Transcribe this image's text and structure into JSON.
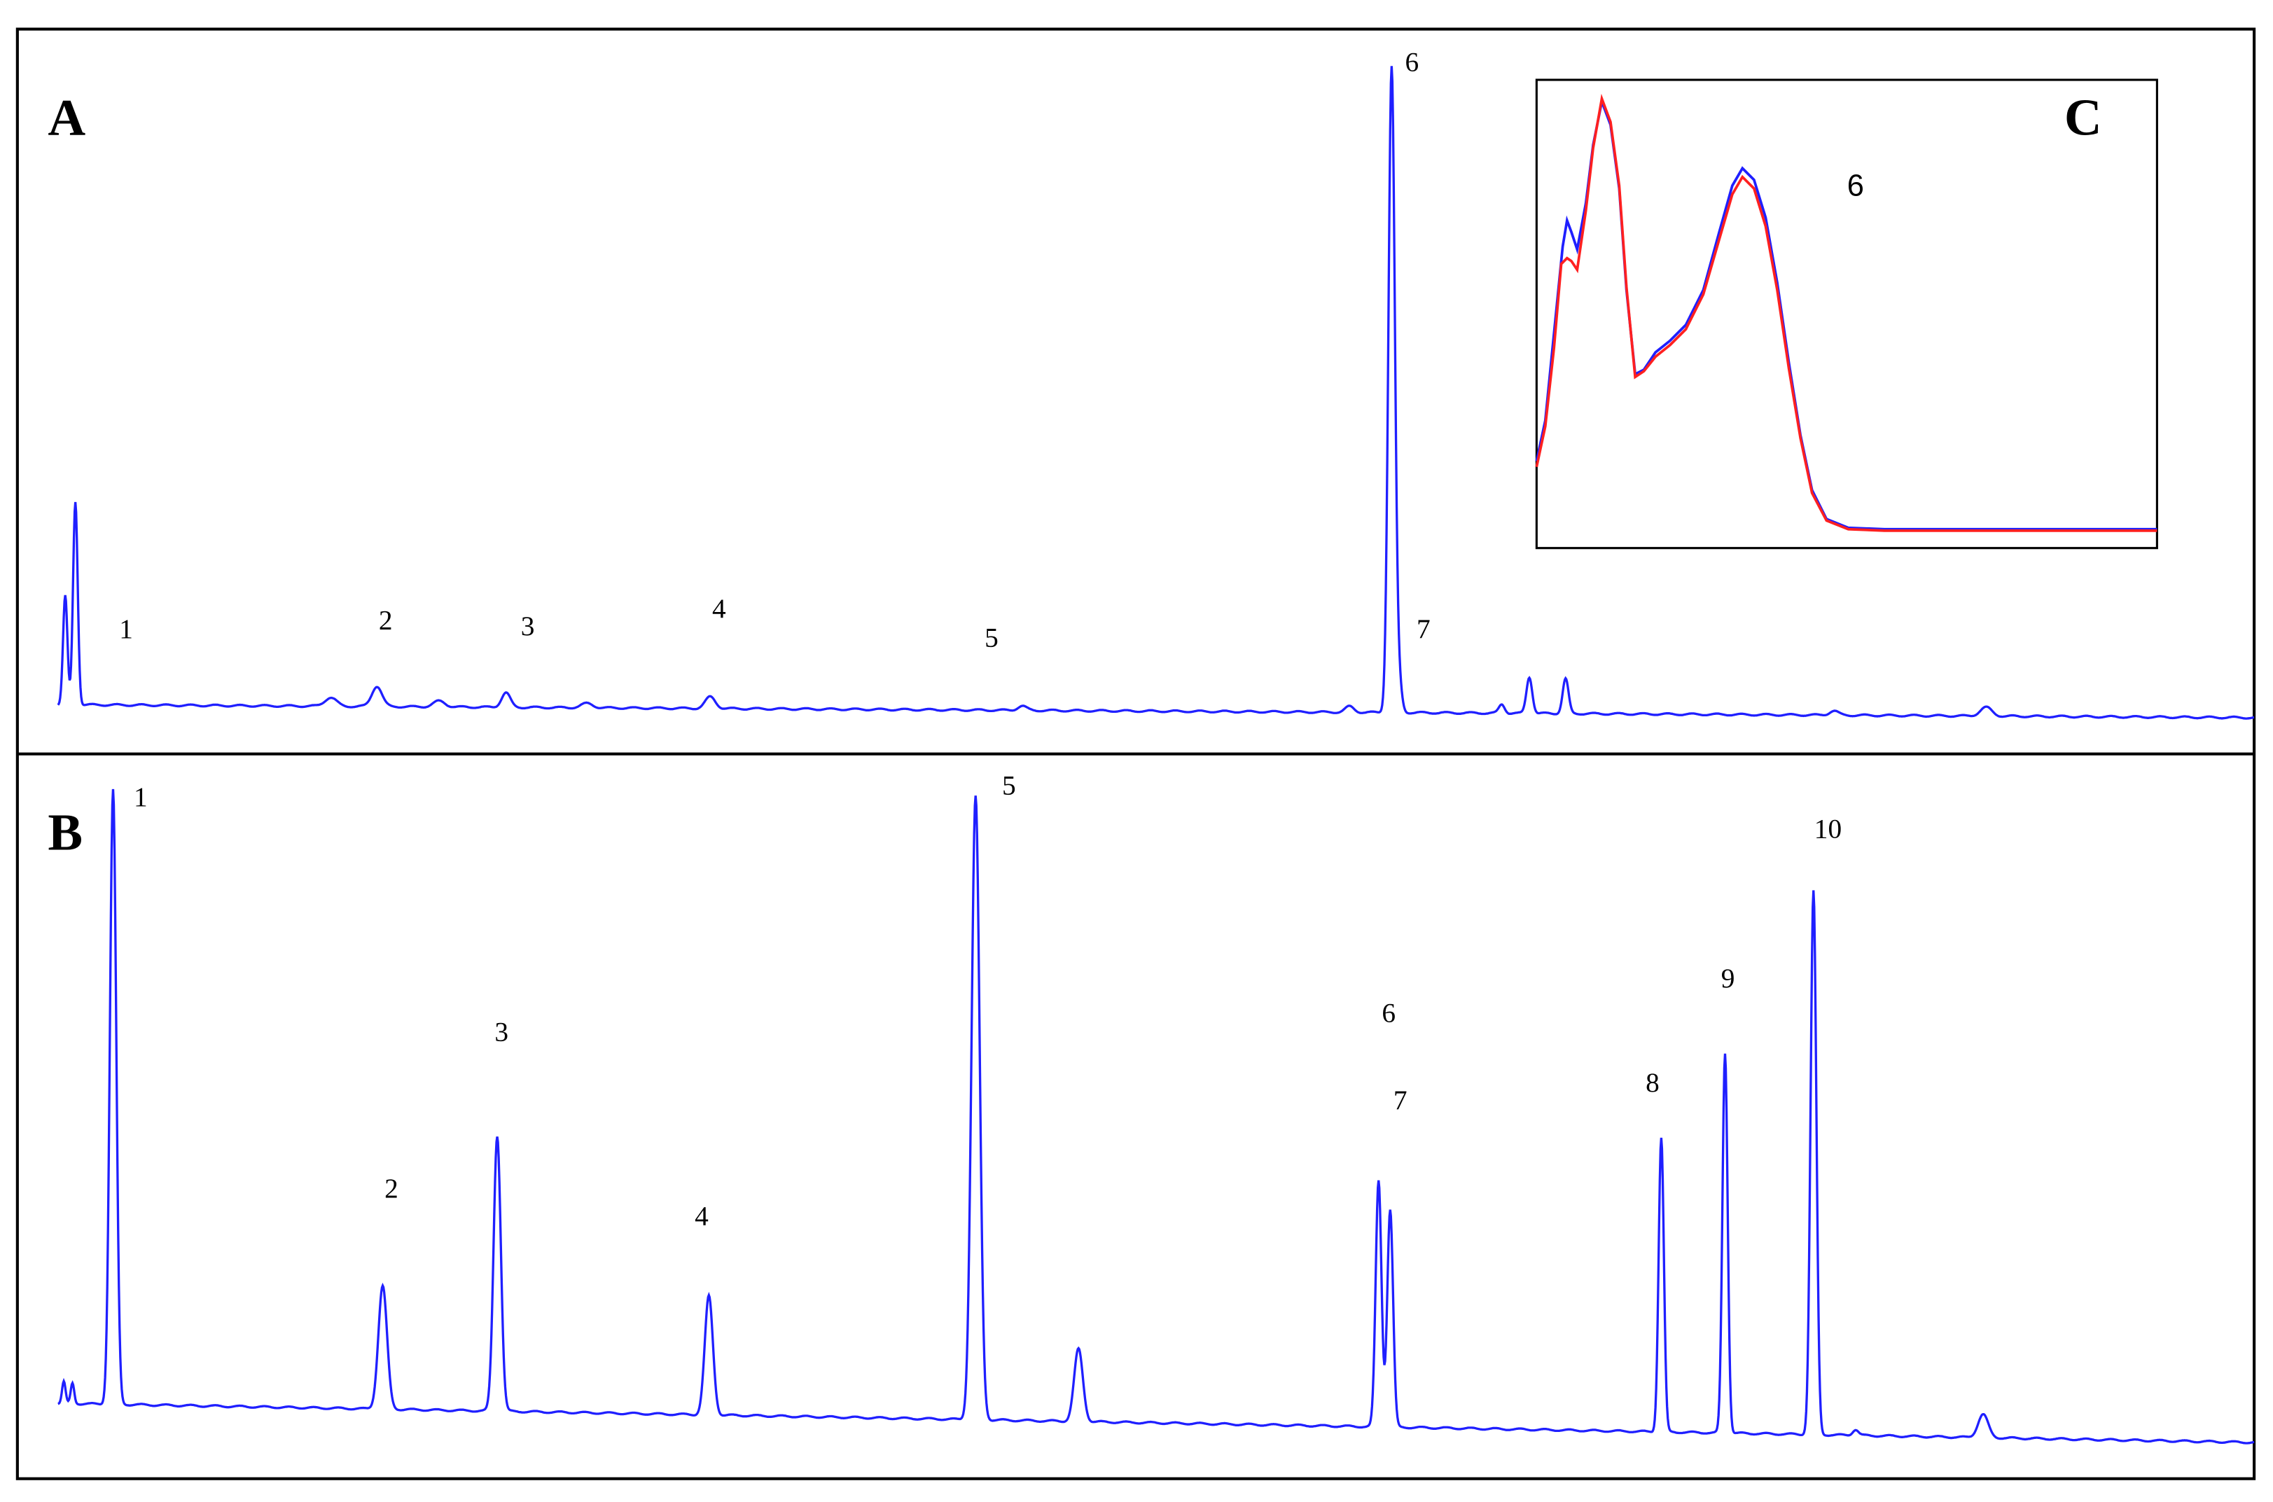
{
  "panels": [
    {
      "label": "A",
      "peak_labels": [
        "1",
        "2",
        "3",
        "4",
        "5",
        "6",
        "7"
      ]
    },
    {
      "label": "B",
      "peak_labels": [
        "1",
        "2",
        "3",
        "4",
        "5",
        "6",
        "7",
        "8",
        "9",
        "10"
      ]
    },
    {
      "label": "C",
      "peak_labels": [
        "6"
      ]
    }
  ]
}
